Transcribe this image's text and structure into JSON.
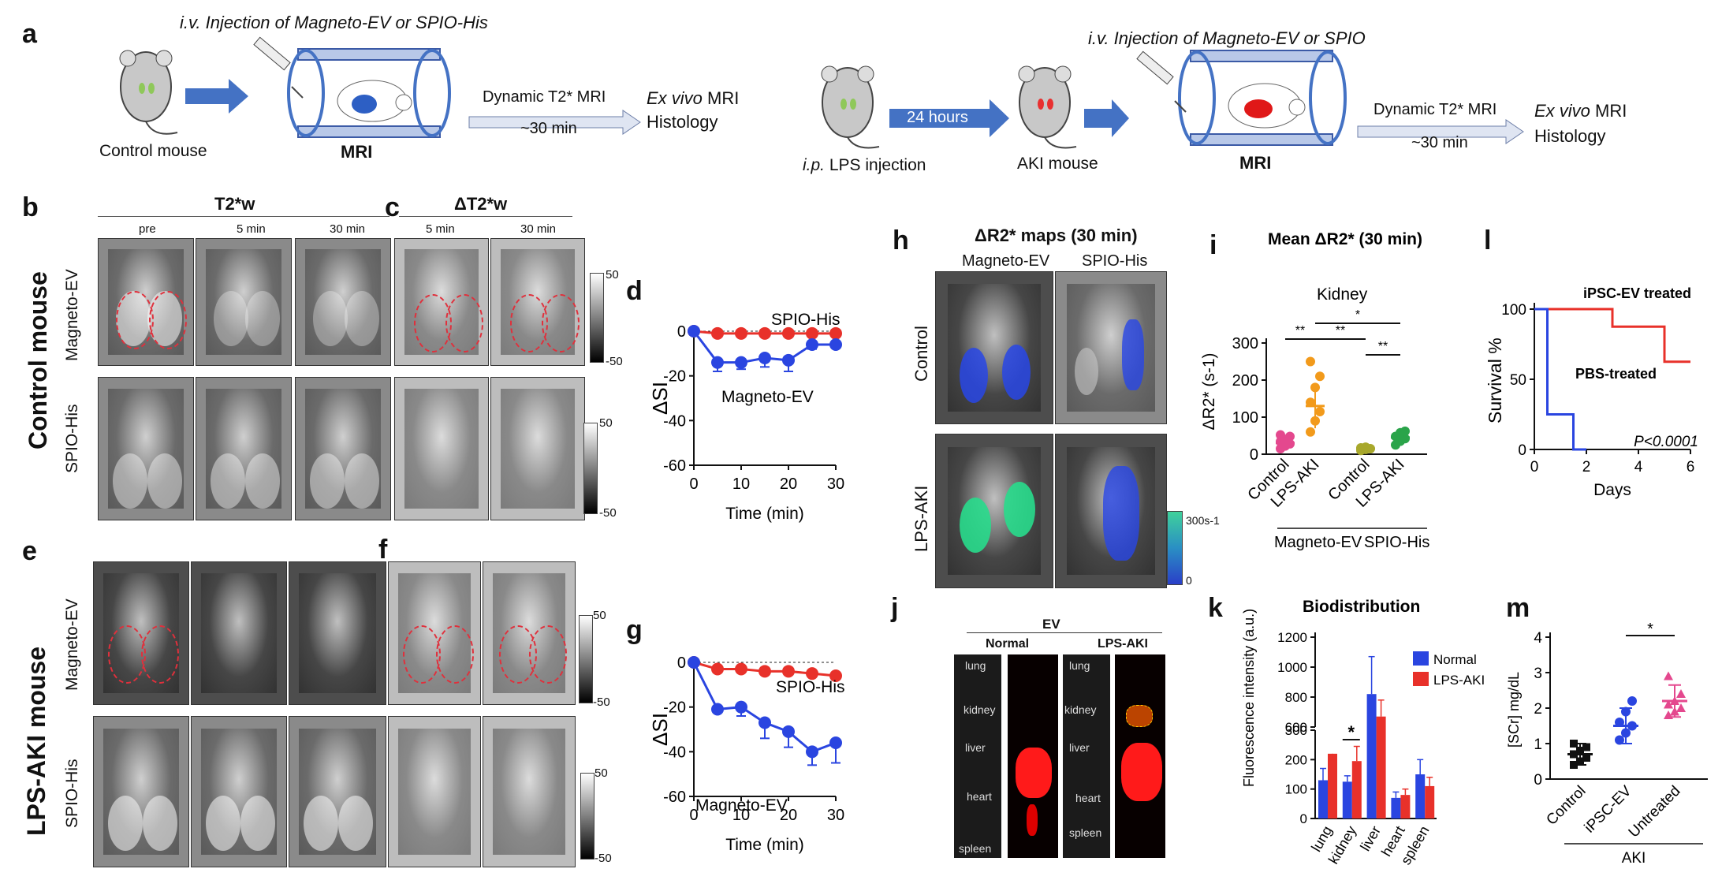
{
  "panels": {
    "a": "a",
    "b": "b",
    "c": "c",
    "d": "d",
    "e": "e",
    "f": "f",
    "g": "g",
    "h": "h",
    "i": "i",
    "j": "j",
    "k": "k",
    "l": "l",
    "m": "m"
  },
  "schematic_a": {
    "left_injection": "i.v. Injection of Magneto-EV or SPIO-His",
    "control_mouse": "Control mouse",
    "mri": "MRI",
    "dynamic": "Dynamic T2* MRI",
    "duration": "~30 min",
    "exvivo_it": "Ex vivo",
    "exvivo_rest": " MRI",
    "histology": "Histology",
    "right_injection": "i.v. Injection of Magneto-EV or SPIO",
    "hours": "24 hours",
    "ip_it": "i.p.",
    "ip_rest": " LPS injection",
    "aki_mouse": "AKI mouse"
  },
  "panel_b": {
    "header": "T2*w",
    "cols": [
      "pre",
      "5 min",
      "30 min"
    ]
  },
  "panel_c": {
    "header": "ΔT2*w",
    "cols": [
      "5 min",
      "30 min"
    ]
  },
  "rows": {
    "magneto": "Magneto-EV",
    "spio": "SPIO-His"
  },
  "groups": {
    "control": "Control mouse",
    "lps": "LPS-AKI mouse"
  },
  "colorbar": {
    "max": "50",
    "min": "-50"
  },
  "panel_h": {
    "title": "ΔR2* maps (30 min)",
    "cols": [
      "Magneto-EV",
      "SPIO-His"
    ],
    "rows": [
      "Control",
      "LPS-AKI"
    ],
    "cbar_max": "300s-1",
    "cbar_min": "0"
  },
  "panel_j": {
    "title": "EV",
    "cols": [
      "Normal",
      "LPS-AKI"
    ],
    "organs": [
      "lung",
      "kidney",
      "liver",
      "heart",
      "spleen"
    ]
  },
  "colors": {
    "red": "#e8312a",
    "blue": "#2a45e0",
    "orange": "#f29a1b",
    "pink": "#e4488e",
    "olive": "#a8a82c",
    "green": "#2aa44a"
  },
  "chart_data": [
    {
      "id": "d",
      "type": "line",
      "xlabel": "Time (min)",
      "ylabel": "ΔSI",
      "xlim": [
        0,
        30
      ],
      "ylim": [
        -60,
        0
      ],
      "xticks": [
        0,
        10,
        20,
        30
      ],
      "yticks": [
        0,
        -20,
        -40,
        -60
      ],
      "series": [
        {
          "name": "SPIO-His",
          "x": [
            0,
            5,
            10,
            15,
            20,
            25,
            30
          ],
          "y": [
            0,
            -1,
            -1,
            -1,
            -1,
            -1,
            -1
          ],
          "err": [
            0,
            0,
            0,
            0,
            0,
            0,
            0
          ]
        },
        {
          "name": "Magneto-EV",
          "x": [
            0,
            5,
            10,
            15,
            20,
            25,
            30
          ],
          "y": [
            0,
            -14,
            -14,
            -12,
            -13,
            -6,
            -6
          ],
          "err": [
            0,
            4,
            3,
            4,
            5,
            2,
            1
          ]
        }
      ]
    },
    {
      "id": "g",
      "type": "line",
      "xlabel": "Time (min)",
      "ylabel": "ΔSI",
      "xlim": [
        0,
        30
      ],
      "ylim": [
        -60,
        0
      ],
      "xticks": [
        0,
        10,
        20,
        30
      ],
      "yticks": [
        0,
        -20,
        -40,
        -60
      ],
      "series": [
        {
          "name": "SPIO-His",
          "x": [
            0,
            5,
            10,
            15,
            20,
            25,
            30
          ],
          "y": [
            0,
            -3,
            -3,
            -4,
            -4,
            -5,
            -6
          ],
          "err": [
            0,
            1,
            1,
            1,
            1,
            1,
            1
          ]
        },
        {
          "name": "Magneto-EV",
          "x": [
            0,
            5,
            10,
            15,
            20,
            25,
            30
          ],
          "y": [
            0,
            -21,
            -20,
            -27,
            -31,
            -40,
            -36
          ],
          "err": [
            0,
            1,
            4,
            7,
            7,
            6,
            9
          ]
        }
      ]
    },
    {
      "id": "i",
      "type": "scatter",
      "title": "Mean ΔR2* (30 min)",
      "subtitle": "Kidney",
      "ylabel": "ΔR2* (s-1)",
      "ylim": [
        0,
        300
      ],
      "yticks": [
        0,
        100,
        200,
        300
      ],
      "categories": [
        "Control",
        "LPS-AKI",
        "Control",
        "LPS-AKI"
      ],
      "group_labels": [
        "Magneto-EV",
        "SPIO-His"
      ],
      "means": [
        30,
        130,
        15,
        45
      ],
      "sd": [
        15,
        60,
        5,
        15
      ],
      "points": [
        [
          15,
          22,
          28,
          34,
          40,
          48,
          52
        ],
        [
          60,
          90,
          115,
          140,
          180,
          210,
          250
        ],
        [
          10,
          13,
          15,
          17,
          19
        ],
        [
          25,
          35,
          42,
          48,
          58,
          62
        ]
      ],
      "significance": [
        "**",
        "**",
        "**",
        "*"
      ]
    },
    {
      "id": "l",
      "type": "line",
      "xlabel": "Days",
      "ylabel": "Survival %",
      "xlim": [
        0,
        6
      ],
      "ylim": [
        0,
        100
      ],
      "xticks": [
        0,
        2,
        4,
        6
      ],
      "yticks": [
        0,
        50,
        100
      ],
      "series": [
        {
          "name": "iPSC-EV treated",
          "steps": [
            [
              0,
              100
            ],
            [
              3,
              100
            ],
            [
              3,
              87.5
            ],
            [
              5,
              87.5
            ],
            [
              5,
              62.5
            ],
            [
              6,
              62.5
            ]
          ]
        },
        {
          "name": "PBS-treated",
          "steps": [
            [
              0,
              100
            ],
            [
              0.5,
              100
            ],
            [
              0.5,
              25
            ],
            [
              1.5,
              25
            ],
            [
              1.5,
              0
            ],
            [
              2,
              0
            ]
          ]
        }
      ],
      "annotation": "P<0.0001"
    },
    {
      "id": "k",
      "type": "bar",
      "title": "Biodistribution",
      "ylabel": "Fluorescence intensity (a.u.)",
      "categories": [
        "lung",
        "kidney",
        "liver",
        "heart",
        "spleen"
      ],
      "yticks": [
        0,
        100,
        200,
        300,
        600,
        800,
        1000,
        1200
      ],
      "series": [
        {
          "name": "Normal",
          "values": [
            130,
            125,
            820,
            70,
            150
          ],
          "err": [
            40,
            20,
            250,
            20,
            50
          ]
        },
        {
          "name": "LPS-AKI",
          "values": [
            220,
            195,
            670,
            80,
            110
          ],
          "err": [
            150,
            50,
            110,
            20,
            30
          ]
        }
      ],
      "significance": "*"
    },
    {
      "id": "m",
      "type": "scatter",
      "ylabel": "[SCr] mg/dL",
      "ylim": [
        0,
        4
      ],
      "yticks": [
        0,
        1,
        2,
        3,
        4
      ],
      "categories": [
        "Control",
        "iPSC-EV",
        "Untreated"
      ],
      "group_label": "AKI",
      "means": [
        0.7,
        1.5,
        2.2
      ],
      "sd": [
        0.3,
        0.5,
        0.45
      ],
      "points": [
        [
          0.4,
          0.5,
          0.6,
          0.7,
          0.8,
          0.9,
          1.0
        ],
        [
          1.1,
          1.3,
          1.5,
          1.6,
          1.9,
          2.2
        ],
        [
          1.8,
          1.9,
          2.0,
          2.1,
          2.2,
          2.4,
          2.9
        ]
      ],
      "significance": "*"
    }
  ]
}
